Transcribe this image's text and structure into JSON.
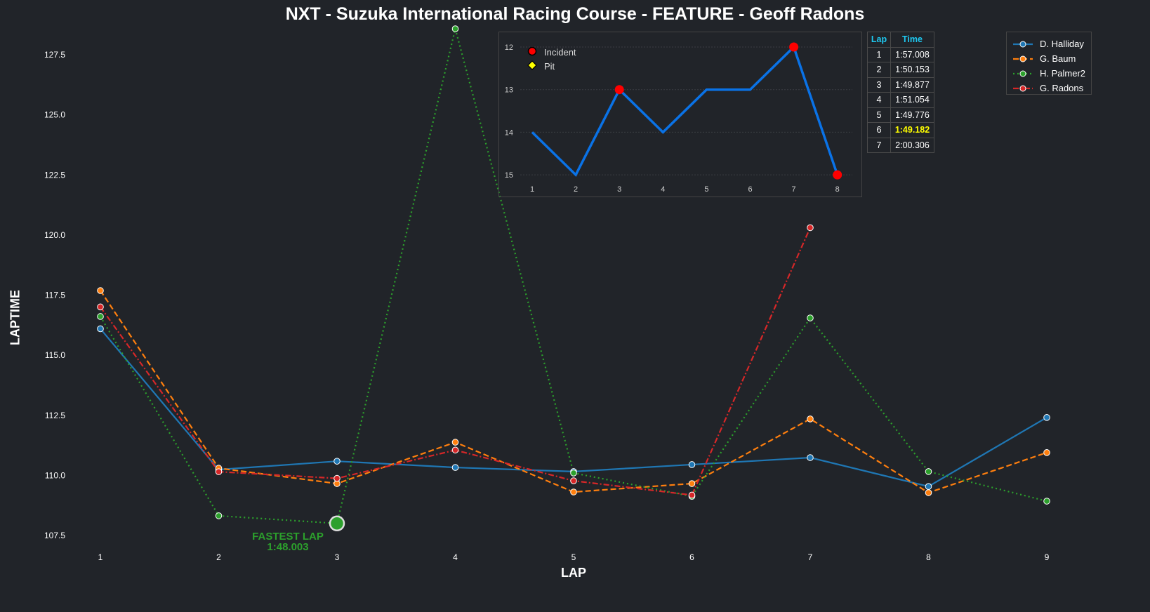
{
  "title": "NXT - Suzuka International Racing Course - FEATURE - Geoff Radons",
  "chart_data": [
    {
      "type": "line",
      "title": "NXT - Suzuka International Racing Course - FEATURE - Geoff Radons",
      "xlabel": "LAP",
      "ylabel": "LAPTIME",
      "x": [
        1,
        2,
        3,
        4,
        5,
        6,
        7,
        8,
        9
      ],
      "xticks": [
        "1",
        "2",
        "3",
        "4",
        "5",
        "6",
        "7",
        "8",
        "9"
      ],
      "yticks": [
        "107.5",
        "110.0",
        "112.5",
        "115.0",
        "117.5",
        "120.0",
        "122.5",
        "125.0",
        "127.5"
      ],
      "ylim": [
        106.9,
        128.7
      ],
      "legend_position": "top-right",
      "series": [
        {
          "name": "D. Halliday",
          "color": "#1f77b4",
          "dash": "solid",
          "values": [
            116.1,
            110.24,
            110.59,
            110.33,
            110.16,
            110.45,
            110.74,
            109.54,
            112.41
          ]
        },
        {
          "name": "G. Baum",
          "color": "#ff7f0e",
          "dash": "dashed",
          "values": [
            117.69,
            110.3,
            109.66,
            111.38,
            109.31,
            109.66,
            112.35,
            109.28,
            110.95
          ]
        },
        {
          "name": "H. Palmer2",
          "color": "#2ca02c",
          "dash": "dotted",
          "values": [
            116.61,
            108.32,
            108.003,
            128.58,
            110.1,
            109.13,
            116.55,
            110.16,
            108.93
          ]
        },
        {
          "name": "G. Radons",
          "color": "#d62728",
          "dash": "dashdot",
          "values": [
            117.008,
            110.153,
            109.877,
            111.054,
            109.776,
            109.182,
            120.306,
            null,
            null
          ]
        }
      ],
      "annotations": [
        {
          "text_line1": "FASTEST LAP",
          "text_line2": "1:48.003",
          "lap": 3,
          "value": 108.003,
          "color": "#2ca02c"
        }
      ]
    },
    {
      "type": "line",
      "title": "",
      "x": [
        1,
        2,
        3,
        4,
        5,
        6,
        7,
        8
      ],
      "xticks": [
        "1",
        "2",
        "3",
        "4",
        "5",
        "6",
        "7",
        "8"
      ],
      "yticks": [
        "12",
        "13",
        "14",
        "15"
      ],
      "ylim": [
        15.3,
        11.6
      ],
      "inverted_y": true,
      "color": "#0a72e6",
      "values": [
        14,
        15,
        13,
        14,
        13,
        13,
        12,
        15
      ],
      "incidents": [
        3,
        7,
        8
      ],
      "pits": [],
      "legend": [
        "Incident",
        "Pit"
      ]
    }
  ],
  "lap_table": {
    "headers": [
      "Lap",
      "Time"
    ],
    "rows": [
      {
        "lap": "1",
        "time": "1:57.008"
      },
      {
        "lap": "2",
        "time": "1:50.153"
      },
      {
        "lap": "3",
        "time": "1:49.877"
      },
      {
        "lap": "4",
        "time": "1:51.054"
      },
      {
        "lap": "5",
        "time": "1:49.776"
      },
      {
        "lap": "6",
        "time": "1:49.182",
        "best": true
      },
      {
        "lap": "7",
        "time": "2:00.306"
      }
    ]
  }
}
